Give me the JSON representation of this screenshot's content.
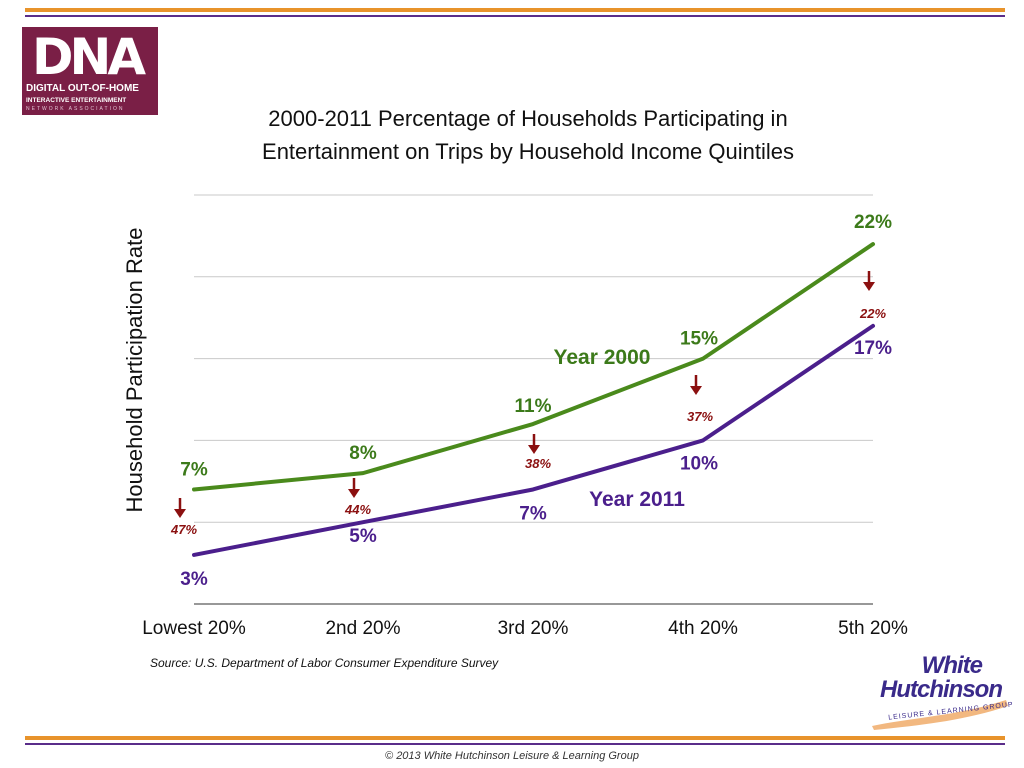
{
  "logo": {
    "letters": "DNA",
    "line1": "DIGITAL OUT-OF-HOME",
    "line2": "INTERACTIVE ENTERTAINMENT",
    "line3": "NETWORK ASSOCIATION"
  },
  "chart_data": {
    "type": "line",
    "title": "2000-2011 Percentage of Households Participating in Entertainment on Trips by Household Income Quintiles",
    "ylabel": "Household Participation Rate",
    "xlabel": "",
    "categories": [
      "Lowest 20%",
      "2nd 20%",
      "3rd 20%",
      "4th 20%",
      "5th 20%"
    ],
    "series": [
      {
        "name": "Year 2000",
        "values": [
          7,
          8,
          11,
          15,
          22
        ],
        "labels": [
          "7%",
          "8%",
          "11%",
          "15%",
          "22%"
        ],
        "color": "#4a8a1c"
      },
      {
        "name": "Year 2011",
        "values": [
          3,
          5,
          7,
          10,
          17
        ],
        "labels": [
          "3%",
          "5%",
          "7%",
          "10%",
          "17%"
        ],
        "color": "#4b1f8c"
      }
    ],
    "declines": [
      "47%",
      "44%",
      "38%",
      "37%",
      "22%"
    ],
    "decline_color": "#8b1010",
    "ylim": [
      0,
      25
    ],
    "grid": true
  },
  "source": "Source: U.S. Department of Labor Consumer Expenditure Survey",
  "wh_logo": {
    "line1": "White",
    "line2": "Hutchinson",
    "line3": "LEISURE & LEARNING GROUP"
  },
  "copyright": "© 2013 White Hutchinson Leisure & Learning Group"
}
